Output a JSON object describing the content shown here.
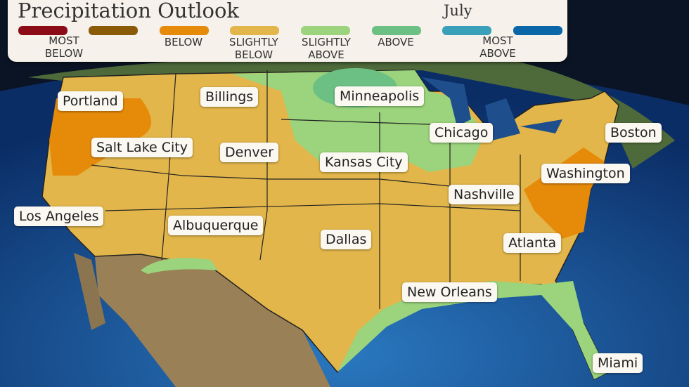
{
  "legend": {
    "title": "Precipitation Outlook",
    "month": "July",
    "categories": [
      {
        "label": "MOST BELOW",
        "colors": [
          "#8b0c17",
          "#8a5a06"
        ]
      },
      {
        "label": "BELOW",
        "colors": [
          "#e68a0a"
        ]
      },
      {
        "label": "SLIGHTLY BELOW",
        "colors": [
          "#e2b64a"
        ]
      },
      {
        "label": "SLIGHTLY ABOVE",
        "colors": [
          "#9bd47c"
        ]
      },
      {
        "label": "ABOVE",
        "colors": [
          "#6cc084"
        ]
      },
      {
        "label": "MOST ABOVE",
        "colors": [
          "#3a9fb8",
          "#0b66a8"
        ]
      }
    ],
    "labels": {
      "most_below": "MOST\nBELOW",
      "below": "BELOW",
      "slightly_below": "SLIGHTLY\nBELOW",
      "slightly_above": "SLIGHTLY\nABOVE",
      "above": "ABOVE",
      "most_above": "MOST\nABOVE"
    }
  },
  "cities": [
    "Portland",
    "Billings",
    "Minneapolis",
    "Chicago",
    "Boston",
    "Salt Lake City",
    "Denver",
    "Kansas City",
    "Washington",
    "Nashville",
    "Los Angeles",
    "Albuquerque",
    "Dallas",
    "Atlanta",
    "New Orleans",
    "Miami"
  ]
}
